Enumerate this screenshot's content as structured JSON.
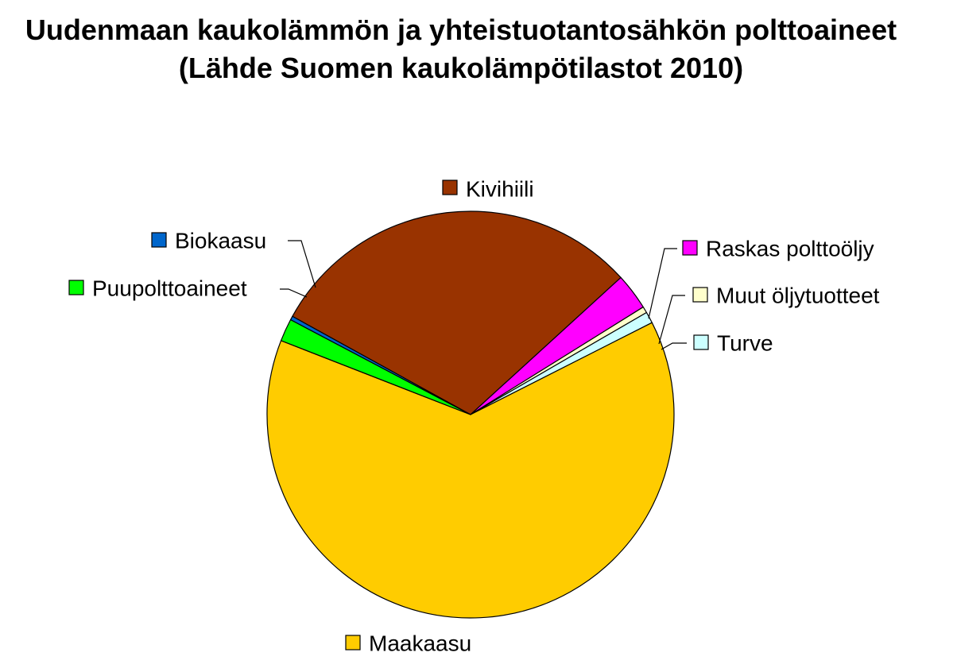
{
  "chart_data": {
    "type": "pie",
    "title": "Uudenmaan kaukolämmön ja yhteistuotantosähkön polttoaineet",
    "subtitle": "(Lähde Suomen kaukolämpötilastot 2010)",
    "start_angle_deg": 298.9,
    "direction": "clockwise",
    "legend": "labels-with-swatches",
    "slices": [
      {
        "label": "Kivihiili",
        "value": 30.2,
        "color": "#993300"
      },
      {
        "label": "Raskas polttoöljy",
        "value": 2.9,
        "color": "#ff00ff"
      },
      {
        "label": "Muut öljytuotteet",
        "value": 0.5,
        "color": "#ffffcc"
      },
      {
        "label": "Turve",
        "value": 0.9,
        "color": "#ccffff"
      },
      {
        "label": "Maakaasu",
        "value": 63.4,
        "color": "#ffcc00"
      },
      {
        "label": "Puupolttoaineet",
        "value": 1.8,
        "color": "#00ff00"
      },
      {
        "label": "Biokaasu",
        "value": 0.3,
        "color": "#0066cc"
      }
    ]
  }
}
